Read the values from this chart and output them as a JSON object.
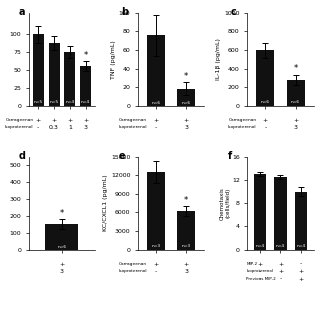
{
  "panel_a": {
    "bars": [
      100,
      88,
      75,
      55
    ],
    "errors": [
      12,
      10,
      8,
      7
    ],
    "ns": [
      "n=5",
      "n=5",
      "n=4",
      "n=4"
    ],
    "star_idx": 3,
    "carrageenan": [
      "+",
      "+",
      "+",
      "+"
    ],
    "isoproterenol": [
      "-",
      "0.3",
      "1",
      "3"
    ],
    "ylim": [
      0,
      130
    ],
    "yticks": [
      0,
      25,
      50,
      75,
      100
    ],
    "ylabel": "",
    "panel_label": "a"
  },
  "panel_b": {
    "bars": [
      76,
      18
    ],
    "errors": [
      22,
      7
    ],
    "ns": [
      "n=6",
      "n=6"
    ],
    "star_idx": 1,
    "carrageenan": [
      "+",
      "+"
    ],
    "isoproterenol": [
      "-",
      "3"
    ],
    "ylim": [
      0,
      100
    ],
    "yticks": [
      0,
      20,
      40,
      60,
      80,
      100
    ],
    "ylabel": "TNF (pg/mL)",
    "panel_label": "b"
  },
  "panel_c": {
    "bars": [
      595,
      280
    ],
    "errors": [
      80,
      55
    ],
    "ns": [
      "n=6",
      "n=6"
    ],
    "star_idx": 1,
    "carrageenan": [
      "+",
      "+"
    ],
    "isoproterenol": [
      "-",
      "3"
    ],
    "ylim": [
      0,
      1000
    ],
    "yticks": [
      0,
      200,
      400,
      600,
      800,
      1000
    ],
    "ylabel": "IL-1β (pg/mL)",
    "panel_label": "c"
  },
  "panel_d": {
    "bars": [
      150
    ],
    "errors": [
      30
    ],
    "ns": [
      "n=6"
    ],
    "star_idx": 0,
    "carrageenan": [
      "+"
    ],
    "isoproterenol": [
      "3"
    ],
    "ylim": [
      0,
      550
    ],
    "yticks": [
      0,
      100,
      200,
      300,
      400,
      500
    ],
    "ylabel": "",
    "panel_label": "d"
  },
  "panel_e": {
    "bars": [
      12500,
      6200
    ],
    "errors": [
      1800,
      800
    ],
    "ns": [
      "n=3",
      "n=3"
    ],
    "star_idx": 1,
    "carrageenan": [
      "+",
      "+"
    ],
    "isoproterenol": [
      "-",
      "3"
    ],
    "ylim": [
      0,
      15000
    ],
    "yticks": [
      0,
      3000,
      6000,
      9000,
      12000,
      15000
    ],
    "ylabel": "KC/CXCL1 (pg/mL)",
    "panel_label": "e"
  },
  "panel_f": {
    "bars": [
      13.0,
      12.5,
      10.0
    ],
    "errors": [
      0.4,
      0.4,
      0.7
    ],
    "ns": [
      "n=4",
      "n=4",
      "n=4"
    ],
    "star_idx": -1,
    "ylim": [
      0,
      16
    ],
    "yticks": [
      0,
      4,
      8,
      12,
      16
    ],
    "ylabel": "Chemotaxis\n(cells/field)",
    "panel_label": "f",
    "row_labels": [
      "MIP-2",
      "Isoproterenol",
      "Previous MIP-2"
    ],
    "col_vals": [
      [
        "+",
        "+",
        "-"
      ],
      [
        "-",
        "+",
        "+"
      ],
      [
        "-",
        "-",
        "+"
      ]
    ]
  },
  "bar_color": "#111111",
  "bg_color": "#ffffff"
}
